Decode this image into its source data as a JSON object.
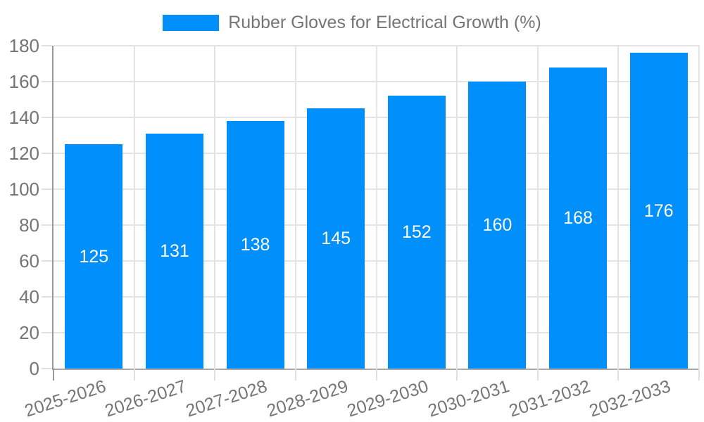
{
  "legend": {
    "label": "Rubber Gloves for Electrical Growth (%)"
  },
  "chart_data": {
    "type": "bar",
    "title": "Rubber Gloves for Electrical Growth (%)",
    "categories": [
      "2025-2026",
      "2026-2027",
      "2027-2028",
      "2028-2029",
      "2029-2030",
      "2030-2031",
      "2031-2032",
      "2032-2033"
    ],
    "values": [
      125,
      131,
      138,
      145,
      152,
      160,
      168,
      176
    ],
    "xlabel": "",
    "ylabel": "",
    "ylim": [
      0,
      180
    ],
    "ytick_step": 20,
    "ytick_labels": [
      "0",
      "20",
      "40",
      "60",
      "80",
      "100",
      "120",
      "140",
      "160",
      "180"
    ],
    "grid": true,
    "legend_position": "top",
    "bar_labels_inside": true,
    "colors": {
      "bar": "#008FFB",
      "grid": "#e4e4e4",
      "tick": "#e0e0e0",
      "axis_text": "#757575",
      "bar_label_text": "#ffffff",
      "background": "#ffffff"
    }
  }
}
